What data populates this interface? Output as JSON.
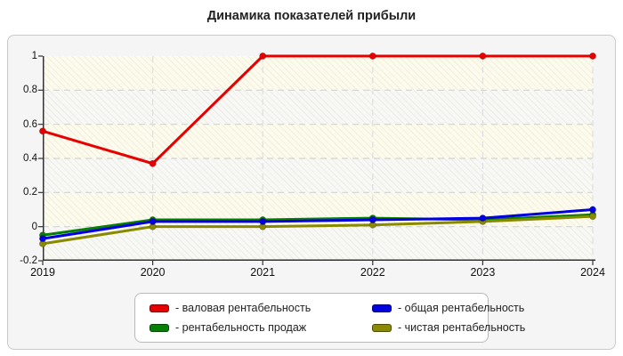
{
  "title": "Динамика показателей прибыли",
  "chart_data": {
    "type": "line",
    "x": [
      "2019",
      "2020",
      "2021",
      "2022",
      "2023",
      "2024"
    ],
    "series": [
      {
        "name": "валовая рентабельность",
        "color": "#e80000",
        "values": [
          0.56,
          0.37,
          1.0,
          1.0,
          1.0,
          1.0
        ]
      },
      {
        "name": "общая рентабельность",
        "color": "#0000e0",
        "values": [
          -0.07,
          0.03,
          0.03,
          0.04,
          0.05,
          0.1
        ]
      },
      {
        "name": "рентабельность продаж",
        "color": "#048004",
        "values": [
          -0.05,
          0.04,
          0.04,
          0.05,
          0.04,
          0.07
        ]
      },
      {
        "name": "чистая рентабельность",
        "color": "#8a8a00",
        "values": [
          -0.1,
          0.0,
          0.0,
          0.01,
          0.03,
          0.06
        ]
      }
    ],
    "title": "Динамика показателей прибыли",
    "xlabel": "",
    "ylabel": "",
    "ylim": [
      -0.2,
      1.0
    ],
    "ytick_step": 0.2,
    "grid": true,
    "legend_position": "bottom"
  },
  "legend": {
    "items": [
      {
        "label": "- валовая рентабельность",
        "color": "#e80000"
      },
      {
        "label": "- общая рентабельность",
        "color": "#0000e0"
      },
      {
        "label": "- рентабельность продаж",
        "color": "#048004"
      },
      {
        "label": "- чистая рентабельность",
        "color": "#8a8a00"
      }
    ]
  }
}
